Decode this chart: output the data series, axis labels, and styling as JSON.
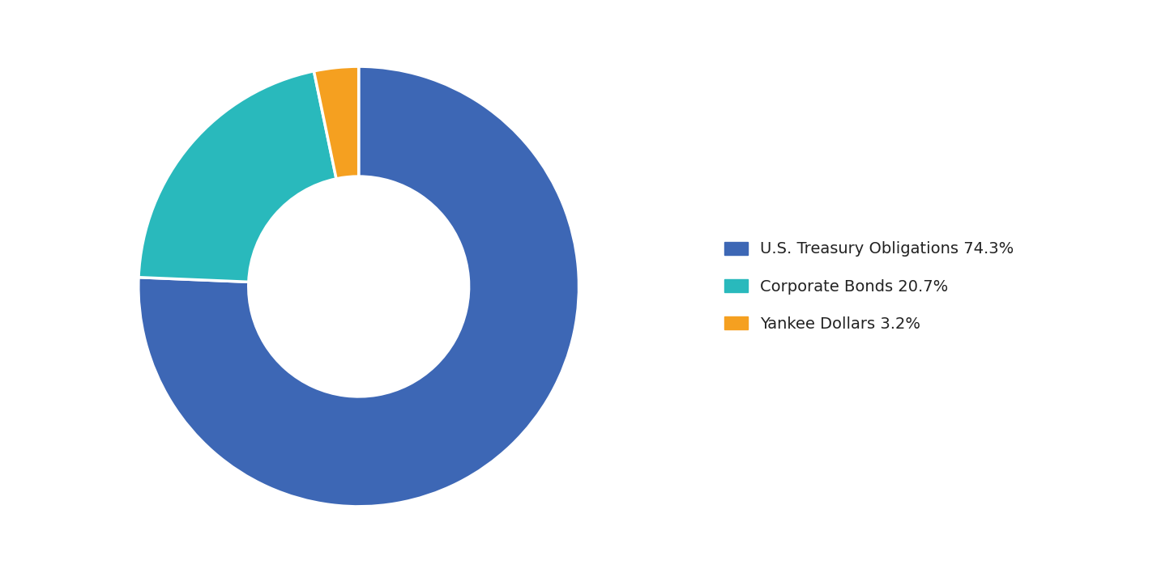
{
  "labels": [
    "U.S. Treasury Obligations 74.3%",
    "Corporate Bonds 20.7%",
    "Yankee Dollars 3.2%"
  ],
  "values": [
    74.3,
    20.7,
    3.2
  ],
  "colors": [
    "#3d67b5",
    "#29b9bc",
    "#f5a020"
  ],
  "background_color": "#ffffff",
  "legend_fontsize": 14,
  "donut_width": 0.5,
  "figsize": [
    14.28,
    7.08
  ],
  "startangle": 90
}
